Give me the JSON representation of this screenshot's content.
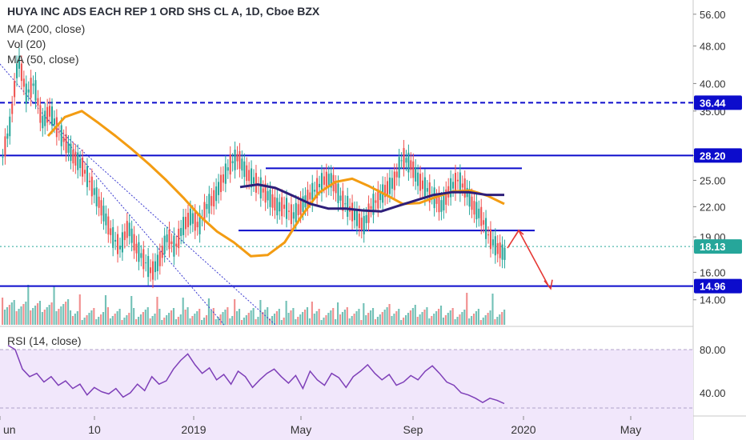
{
  "chart_data": {
    "type": "candlestick",
    "title": "HUYA INC ADS EACH REP 1 ORD SHS CL A, 1D, Cboe BZX",
    "indicators": [
      "MA (200, close)",
      "Vol (20)",
      "MA (50, close)"
    ],
    "price_axis": {
      "scale": "log",
      "ticks": [
        "56.00",
        "48.00",
        "40.00",
        "35.00",
        "28.20",
        "25.00",
        "22.00",
        "19.00",
        "16.00",
        "14.00"
      ],
      "tick_values": [
        56,
        48,
        40,
        35,
        28.2,
        25,
        22,
        19,
        16,
        14
      ],
      "range": [
        12.4,
        60
      ]
    },
    "price_labels": [
      {
        "text": "36.44",
        "value": 36.44,
        "color": "#0c0ccc"
      },
      {
        "text": "28.20",
        "value": 28.2,
        "color": "#0c0ccc"
      },
      {
        "text": "18.13",
        "value": 18.13,
        "color": "#26a69a"
      },
      {
        "text": "14.96",
        "value": 14.96,
        "color": "#0c0ccc"
      }
    ],
    "x_axis": {
      "ticks": [
        "un",
        "10",
        "2019",
        "May",
        "Sep",
        "2020",
        "May"
      ]
    },
    "horizontal_levels": [
      {
        "value": 36.44,
        "style": "dashed",
        "color": "#0c0ccc"
      },
      {
        "value": 28.2,
        "style": "solid",
        "color": "#0c0ccc"
      },
      {
        "value": 14.96,
        "style": "solid",
        "color": "#0c0ccc"
      }
    ],
    "range_box": {
      "top": 26.5,
      "bottom": 19.6,
      "color": "#0c0ccc"
    },
    "last_price": 18.13,
    "close_path": [
      28,
      33,
      45,
      38,
      40,
      33,
      35,
      32,
      30,
      28,
      27,
      25,
      23,
      21,
      19,
      18,
      20,
      18,
      17,
      16,
      17,
      19,
      18,
      20,
      21,
      20,
      22,
      23,
      25,
      27,
      28,
      26,
      25,
      24,
      23,
      22,
      22,
      21,
      22,
      23,
      24,
      25,
      25,
      23,
      22,
      21,
      20,
      22,
      23,
      24,
      25,
      28,
      27,
      25,
      24,
      23,
      22,
      24,
      25,
      24,
      22,
      21,
      19,
      18,
      17.5
    ],
    "ma50_path": [
      31,
      34,
      35,
      33,
      31,
      29,
      27,
      25,
      23,
      21,
      19.5,
      18.5,
      17.3,
      17.4,
      18.5,
      21,
      23.5,
      24.8,
      25.2,
      24.3,
      23.3,
      22.3,
      22.4,
      23.1,
      23.7,
      23.8,
      23.2,
      22.3
    ],
    "ma200_path": [
      24.2,
      24.5,
      24.1,
      23.2,
      22.3,
      21.8,
      21.8,
      21.6,
      21.5,
      22.1,
      22.7,
      23.3,
      23.6,
      23.6,
      23.3,
      23.3
    ],
    "projection": [
      19.1,
      19.6,
      14.9
    ],
    "rsi": {
      "label": "RSI (14, close)",
      "ticks": [
        "80.00",
        "40.00"
      ],
      "tick_values": [
        80,
        40
      ],
      "range": [
        20,
        100
      ],
      "values": [
        84,
        80,
        62,
        55,
        58,
        50,
        55,
        47,
        51,
        44,
        48,
        38,
        45,
        41,
        39,
        44,
        36,
        40,
        48,
        42,
        55,
        48,
        51,
        62,
        70,
        76,
        66,
        58,
        63,
        52,
        57,
        48,
        60,
        55,
        45,
        52,
        58,
        62,
        55,
        49,
        56,
        44,
        60,
        52,
        47,
        58,
        54,
        45,
        55,
        60,
        66,
        58,
        52,
        57,
        47,
        50,
        56,
        52,
        60,
        65,
        58,
        50,
        47,
        40,
        38,
        35,
        31,
        35,
        33,
        30
      ]
    }
  }
}
